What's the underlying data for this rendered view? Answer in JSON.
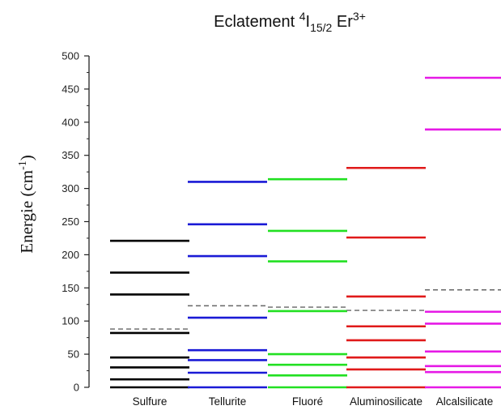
{
  "chart_data": {
    "type": "energy-level",
    "title": {
      "prefix": "Eclatement ",
      "sup1": "4",
      "main": "I",
      "sub": "15/2",
      "ion": " Er",
      "sup2": "3+"
    },
    "ylabel": {
      "text": "Energie (cm",
      "sup": "-1",
      "close": ")"
    },
    "ylim": [
      0,
      500
    ],
    "yticks": [
      0,
      50,
      100,
      150,
      200,
      250,
      300,
      350,
      400,
      450,
      500
    ],
    "grid": false,
    "categories": [
      "Sulfure",
      "Tellurite",
      "Fluoré",
      "Aluminosilicate",
      "Alcalsilicate"
    ],
    "series": [
      {
        "color": "#000000",
        "levels": [
          0,
          12,
          30,
          45,
          82,
          140,
          173,
          221
        ],
        "dashed_level": 88
      },
      {
        "color": "#1a1ad6",
        "levels": [
          0,
          22,
          41,
          56,
          105,
          198,
          246,
          310
        ],
        "dashed_level": 123
      },
      {
        "color": "#22e022",
        "levels": [
          0,
          18,
          34,
          50,
          115,
          190,
          236,
          314
        ],
        "dashed_level": 121
      },
      {
        "color": "#e01a1a",
        "levels": [
          0,
          27,
          45,
          71,
          92,
          137,
          226,
          331
        ],
        "dashed_level": 116
      },
      {
        "color": "#e61ae6",
        "levels": [
          0,
          23,
          32,
          54,
          96,
          114,
          389,
          467
        ],
        "dashed_level": 147
      }
    ],
    "dashed_color": "#666666"
  }
}
